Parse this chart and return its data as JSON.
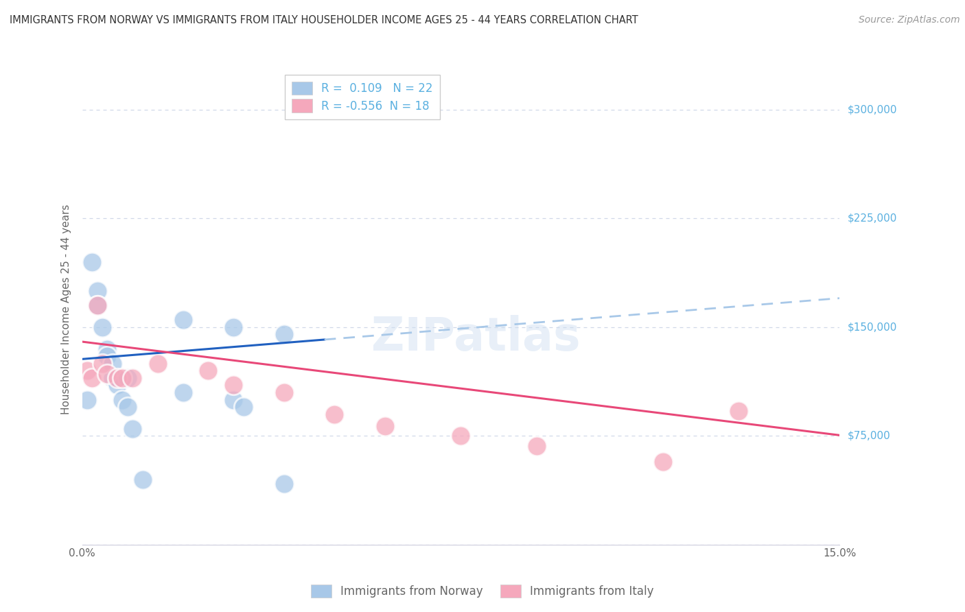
{
  "title": "IMMIGRANTS FROM NORWAY VS IMMIGRANTS FROM ITALY HOUSEHOLDER INCOME AGES 25 - 44 YEARS CORRELATION CHART",
  "source": "Source: ZipAtlas.com",
  "ylabel": "Householder Income Ages 25 - 44 years",
  "x_min": 0.0,
  "x_max": 0.15,
  "y_min": 0,
  "y_max": 325000,
  "norway_R": 0.109,
  "norway_N": 22,
  "italy_R": -0.556,
  "italy_N": 18,
  "norway_color": "#a8c8e8",
  "italy_color": "#f5a8bc",
  "norway_line_color": "#2060c0",
  "italy_line_color": "#e84878",
  "dashed_line_color": "#a8c8e8",
  "background_color": "#ffffff",
  "grid_color": "#d0d8e8",
  "norway_x": [
    0.001,
    0.002,
    0.003,
    0.003,
    0.004,
    0.005,
    0.005,
    0.006,
    0.006,
    0.007,
    0.008,
    0.009,
    0.009,
    0.02,
    0.02,
    0.03,
    0.03,
    0.04,
    0.04,
    0.032,
    0.01,
    0.012
  ],
  "norway_y": [
    100000,
    195000,
    175000,
    165000,
    150000,
    135000,
    130000,
    125000,
    115000,
    110000,
    100000,
    115000,
    95000,
    155000,
    105000,
    150000,
    100000,
    145000,
    42000,
    95000,
    80000,
    45000
  ],
  "italy_x": [
    0.001,
    0.002,
    0.003,
    0.004,
    0.005,
    0.007,
    0.008,
    0.01,
    0.015,
    0.025,
    0.03,
    0.04,
    0.05,
    0.06,
    0.075,
    0.09,
    0.115,
    0.13
  ],
  "italy_y": [
    120000,
    115000,
    165000,
    125000,
    118000,
    115000,
    115000,
    115000,
    125000,
    120000,
    110000,
    105000,
    90000,
    82000,
    75000,
    68000,
    57000,
    92000
  ],
  "norway_line_x0": 0.0,
  "norway_line_x_solid_end": 0.048,
  "norway_line_x_dash_end": 0.15,
  "norway_line_y0": 128000,
  "norway_line_slope": 280000,
  "italy_line_y0": 140000,
  "italy_line_slope": -430000,
  "yticks": [
    0,
    75000,
    150000,
    225000,
    300000
  ],
  "ytick_labels_right": [
    "",
    "$75,000",
    "$150,000",
    "$225,000",
    "$300,000"
  ],
  "xtick_positions": [
    0.0,
    0.05,
    0.1,
    0.15
  ],
  "xtick_labels": [
    "0.0%",
    "",
    "",
    "15.0%"
  ],
  "watermark_text": "ZIPatlas",
  "right_label_color": "#5ab0e0",
  "title_color": "#333333",
  "source_color": "#999999",
  "axis_label_color": "#666666",
  "tick_label_color": "#666666",
  "bottom_legend_label_norway": "Immigrants from Norway",
  "bottom_legend_label_italy": "Immigrants from Italy"
}
